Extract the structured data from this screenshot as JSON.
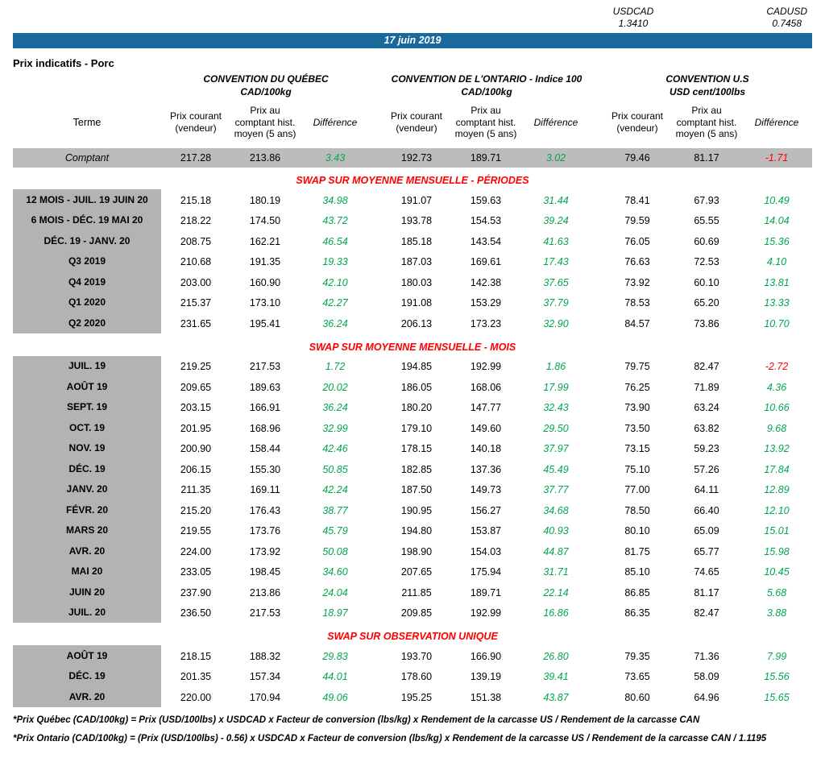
{
  "fx": {
    "pairs": [
      {
        "label": "USDCAD",
        "value": "1.3410"
      },
      {
        "label": "CADUSD",
        "value": "0.7458"
      }
    ]
  },
  "date_banner": "17 juin 2019",
  "title": "Prix indicatifs - Porc",
  "groups": [
    {
      "name": "CONVENTION DU QUÉBEC",
      "unit": "CAD/100kg"
    },
    {
      "name": "CONVENTION DE L'ONTARIO - Indice 100",
      "unit": "CAD/100kg"
    },
    {
      "name": "CONVENTION U.S",
      "unit": "USD cent/100lbs"
    }
  ],
  "col_headers": {
    "terme": "Terme",
    "cols": [
      "Prix courant (vendeur)",
      "Prix au comptant hist. moyen (5 ans)",
      "Différence"
    ]
  },
  "spot_row": {
    "label": "Comptant",
    "values": [
      "217.28",
      "213.86",
      "3.43",
      "192.73",
      "189.71",
      "3.02",
      "79.46",
      "81.17",
      "-1.71"
    ]
  },
  "sections": [
    {
      "title": "SWAP SUR MOYENNE MENSUELLE - PÉRIODES",
      "rows": [
        {
          "label": "12 MOIS -  JUIL. 19 JUIN 20",
          "values": [
            "215.18",
            "180.19",
            "34.98",
            "191.07",
            "159.63",
            "31.44",
            "78.41",
            "67.93",
            "10.49"
          ]
        },
        {
          "label": "6 MOIS -  DÉC. 19 MAI 20",
          "values": [
            "218.22",
            "174.50",
            "43.72",
            "193.78",
            "154.53",
            "39.24",
            "79.59",
            "65.55",
            "14.04"
          ]
        },
        {
          "label": "DÉC. 19 -  JANV. 20",
          "values": [
            "208.75",
            "162.21",
            "46.54",
            "185.18",
            "143.54",
            "41.63",
            "76.05",
            "60.69",
            "15.36"
          ]
        },
        {
          "label": "Q3 2019",
          "values": [
            "210.68",
            "191.35",
            "19.33",
            "187.03",
            "169.61",
            "17.43",
            "76.63",
            "72.53",
            "4.10"
          ]
        },
        {
          "label": "Q4 2019",
          "values": [
            "203.00",
            "160.90",
            "42.10",
            "180.03",
            "142.38",
            "37.65",
            "73.92",
            "60.10",
            "13.81"
          ]
        },
        {
          "label": "Q1 2020",
          "values": [
            "215.37",
            "173.10",
            "42.27",
            "191.08",
            "153.29",
            "37.79",
            "78.53",
            "65.20",
            "13.33"
          ]
        },
        {
          "label": "Q2 2020",
          "values": [
            "231.65",
            "195.41",
            "36.24",
            "206.13",
            "173.23",
            "32.90",
            "84.57",
            "73.86",
            "10.70"
          ]
        }
      ]
    },
    {
      "title": "SWAP SUR MOYENNE MENSUELLE - MOIS",
      "rows": [
        {
          "label": "JUIL. 19",
          "values": [
            "219.25",
            "217.53",
            "1.72",
            "194.85",
            "192.99",
            "1.86",
            "79.75",
            "82.47",
            "-2.72"
          ]
        },
        {
          "label": "AOÛT 19",
          "values": [
            "209.65",
            "189.63",
            "20.02",
            "186.05",
            "168.06",
            "17.99",
            "76.25",
            "71.89",
            "4.36"
          ]
        },
        {
          "label": "SEPT. 19",
          "values": [
            "203.15",
            "166.91",
            "36.24",
            "180.20",
            "147.77",
            "32.43",
            "73.90",
            "63.24",
            "10.66"
          ]
        },
        {
          "label": "OCT. 19",
          "values": [
            "201.95",
            "168.96",
            "32.99",
            "179.10",
            "149.60",
            "29.50",
            "73.50",
            "63.82",
            "9.68"
          ]
        },
        {
          "label": "NOV. 19",
          "values": [
            "200.90",
            "158.44",
            "42.46",
            "178.15",
            "140.18",
            "37.97",
            "73.15",
            "59.23",
            "13.92"
          ]
        },
        {
          "label": "DÉC. 19",
          "values": [
            "206.15",
            "155.30",
            "50.85",
            "182.85",
            "137.36",
            "45.49",
            "75.10",
            "57.26",
            "17.84"
          ]
        },
        {
          "label": "JANV. 20",
          "values": [
            "211.35",
            "169.11",
            "42.24",
            "187.50",
            "149.73",
            "37.77",
            "77.00",
            "64.11",
            "12.89"
          ]
        },
        {
          "label": "FÉVR. 20",
          "values": [
            "215.20",
            "176.43",
            "38.77",
            "190.95",
            "156.27",
            "34.68",
            "78.50",
            "66.40",
            "12.10"
          ]
        },
        {
          "label": "MARS 20",
          "values": [
            "219.55",
            "173.76",
            "45.79",
            "194.80",
            "153.87",
            "40.93",
            "80.10",
            "65.09",
            "15.01"
          ]
        },
        {
          "label": "AVR. 20",
          "values": [
            "224.00",
            "173.92",
            "50.08",
            "198.90",
            "154.03",
            "44.87",
            "81.75",
            "65.77",
            "15.98"
          ]
        },
        {
          "label": "MAI 20",
          "values": [
            "233.05",
            "198.45",
            "34.60",
            "207.65",
            "175.94",
            "31.71",
            "85.10",
            "74.65",
            "10.45"
          ]
        },
        {
          "label": "JUIN 20",
          "values": [
            "237.90",
            "213.86",
            "24.04",
            "211.85",
            "189.71",
            "22.14",
            "86.85",
            "81.17",
            "5.68"
          ]
        },
        {
          "label": "JUIL. 20",
          "values": [
            "236.50",
            "217.53",
            "18.97",
            "209.85",
            "192.99",
            "16.86",
            "86.35",
            "82.47",
            "3.88"
          ]
        }
      ]
    },
    {
      "title": "SWAP SUR OBSERVATION UNIQUE",
      "rows": [
        {
          "label": "AOÛT 19",
          "values": [
            "218.15",
            "188.32",
            "29.83",
            "193.70",
            "166.90",
            "26.80",
            "79.35",
            "71.36",
            "7.99"
          ]
        },
        {
          "label": "DÉC. 19",
          "values": [
            "201.35",
            "157.34",
            "44.01",
            "178.60",
            "139.19",
            "39.41",
            "73.65",
            "58.09",
            "15.56"
          ]
        },
        {
          "label": "AVR. 20",
          "values": [
            "220.00",
            "170.94",
            "49.06",
            "195.25",
            "151.38",
            "43.87",
            "80.60",
            "64.96",
            "15.65"
          ]
        }
      ]
    }
  ],
  "footnotes": [
    "*Prix Québec (CAD/100kg) = Prix (USD/100lbs) x USDCAD x Facteur de conversion (lbs/kg) x Rendement de la carcasse US / Rendement de la carcasse CAN",
    "*Prix Ontario (CAD/100kg) = (Prix (USD/100lbs) - 0.56) x USDCAD x Facteur de conversion (lbs/kg) x Rendement de la carcasse US / Rendement de la carcasse CAN / 1.1195"
  ],
  "colors": {
    "banner": "#19699c",
    "positive": "#00a650",
    "negative": "#ff0000",
    "section_title": "#ff0000",
    "label_bg": "#b3b3b3",
    "spot_bg": "#bcbcbc"
  }
}
